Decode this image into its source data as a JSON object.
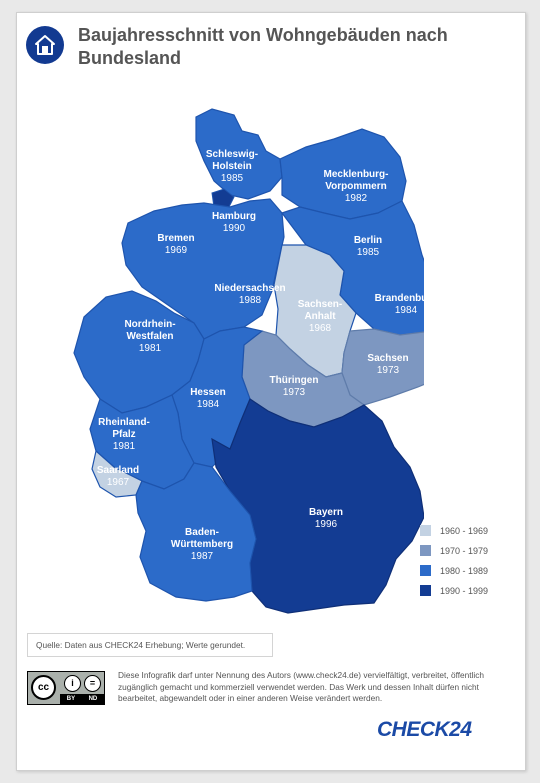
{
  "header": {
    "icon": "house-icon",
    "title": "Baujahresschnitt von Wohngebäuden nach Bundesland"
  },
  "colors": {
    "c1960": "#c3d2e3",
    "c1970": "#7d97c1",
    "c1980": "#2c6bc9",
    "c1990": "#133c93",
    "c1980_border": "#1e54ad"
  },
  "states": [
    {
      "id": "schleswig-holstein",
      "name_lines": [
        "Schleswig-",
        "Holstein"
      ],
      "year": "1985",
      "bucket": "1980 - 1989"
    },
    {
      "id": "hamburg",
      "name_lines": [
        "Hamburg"
      ],
      "year": "1990",
      "bucket": "1990 - 1999"
    },
    {
      "id": "mecklenburg-vorpommern",
      "name_lines": [
        "Mecklenburg-",
        "Vorpommern"
      ],
      "year": "1982",
      "bucket": "1980 - 1989"
    },
    {
      "id": "bremen",
      "name_lines": [
        "Bremen"
      ],
      "year": "1969",
      "bucket": "1960 - 1969"
    },
    {
      "id": "berlin",
      "name_lines": [
        "Berlin"
      ],
      "year": "1985",
      "bucket": "1980 - 1989"
    },
    {
      "id": "niedersachsen",
      "name_lines": [
        "Niedersachsen"
      ],
      "year": "1988",
      "bucket": "1980 - 1989"
    },
    {
      "id": "sachsen-anhalt",
      "name_lines": [
        "Sachsen-",
        "Anhalt"
      ],
      "year": "1968",
      "bucket": "1960 - 1969"
    },
    {
      "id": "brandenburg",
      "name_lines": [
        "Brandenburg"
      ],
      "year": "1984",
      "bucket": "1980 - 1989"
    },
    {
      "id": "nordrhein-westfalen",
      "name_lines": [
        "Nordrhein-",
        "Westfalen"
      ],
      "year": "1981",
      "bucket": "1980 - 1989"
    },
    {
      "id": "sachsen",
      "name_lines": [
        "Sachsen"
      ],
      "year": "1973",
      "bucket": "1970 - 1979"
    },
    {
      "id": "thueringen",
      "name_lines": [
        "Thüringen"
      ],
      "year": "1973",
      "bucket": "1970 - 1979"
    },
    {
      "id": "hessen",
      "name_lines": [
        "Hessen"
      ],
      "year": "1984",
      "bucket": "1980 - 1989"
    },
    {
      "id": "rheinland-pfalz",
      "name_lines": [
        "Rheinland-",
        "Pfalz"
      ],
      "year": "1981",
      "bucket": "1980 - 1989"
    },
    {
      "id": "saarland",
      "name_lines": [
        "Saarland"
      ],
      "year": "1967",
      "bucket": "1960 - 1969"
    },
    {
      "id": "bayern",
      "name_lines": [
        "Bayern"
      ],
      "year": "1996",
      "bucket": "1990 - 1999"
    },
    {
      "id": "baden-wuerttemberg",
      "name_lines": [
        "Baden-",
        "Württemberg"
      ],
      "year": "1987",
      "bucket": "1980 - 1989"
    }
  ],
  "legend": [
    {
      "label": "1960 - 1969",
      "color": "#c3d2e3"
    },
    {
      "label": "1970 - 1979",
      "color": "#7d97c1"
    },
    {
      "label": "1980 - 1989",
      "color": "#2c6bc9"
    },
    {
      "label": "1990 - 1999",
      "color": "#133c93"
    }
  ],
  "footer": {
    "source": "Quelle: Daten aus CHECK24 Erhebung; Werte gerundet.",
    "cc_badge": {
      "cc": "cc",
      "by": "BY",
      "nd": "ND",
      "icon": "creative-commons-icon"
    },
    "license": "Diese Infografik darf unter Nennung des Autors (www.check24.de) vervielfältigt, verbreitet, öffentlich zugänglich gemacht und kommerziell verwendet werden. Das Werk und dessen Inhalt dürfen nicht bearbeitet, abgewandelt oder in einer anderen Weise verändert werden.",
    "logo": "CHECK24"
  }
}
